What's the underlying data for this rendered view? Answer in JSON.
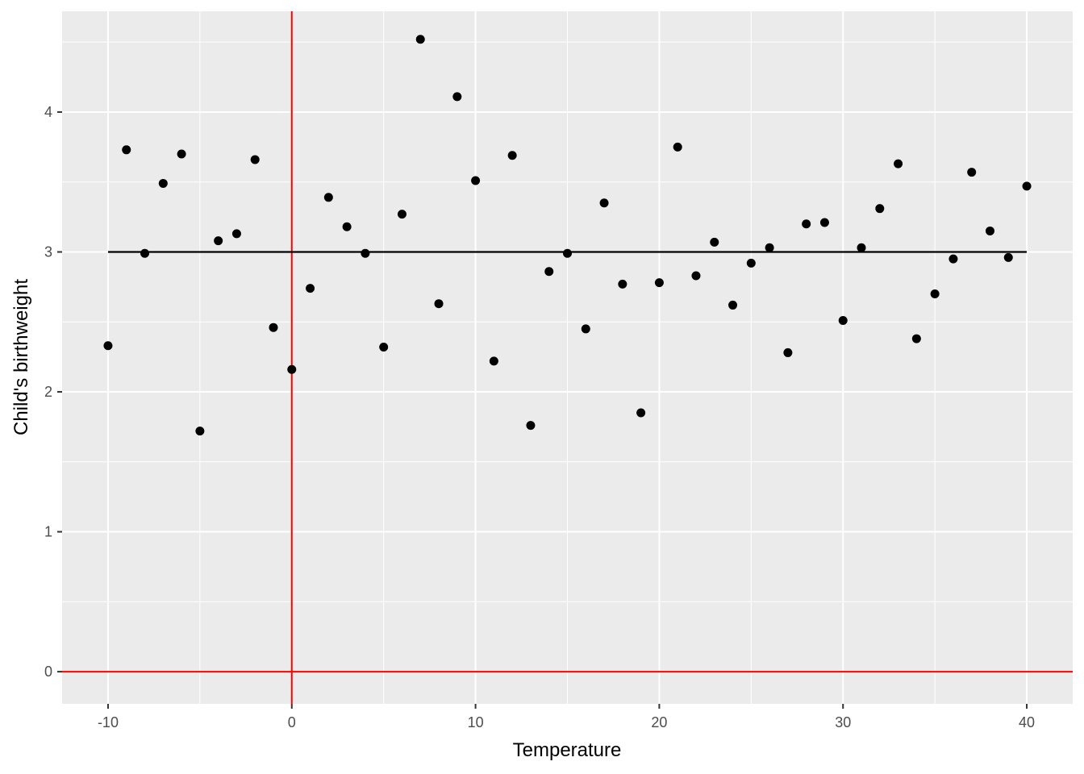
{
  "chart_data": {
    "type": "scatter",
    "title": "",
    "xlabel": "Temperature",
    "ylabel": "Child's birthweight",
    "xlim": [
      -12.5,
      42.5
    ],
    "ylim": [
      -0.23,
      4.72
    ],
    "x_ticks": [
      -10,
      0,
      10,
      20,
      30,
      40
    ],
    "x_tick_labels": [
      "-10",
      "0",
      "10",
      "20",
      "30",
      "40"
    ],
    "y_ticks": [
      0,
      1,
      2,
      3,
      4
    ],
    "y_tick_labels": [
      "0",
      "1",
      "2",
      "3",
      "4"
    ],
    "grid": true,
    "legend": "none",
    "colors": {
      "panel_background": "#ebebeb",
      "grid": "#ffffff",
      "points": "#000000",
      "reference_lines": "#ff0000",
      "fit_line": "#000000"
    },
    "series": [
      {
        "x": [
          -10,
          -9,
          -8,
          -7,
          -6,
          -5,
          -4,
          -3,
          -2,
          -1,
          0,
          1,
          2,
          3,
          4,
          5,
          6,
          7,
          8,
          9,
          10,
          11,
          12,
          13,
          14,
          15,
          16,
          17,
          18,
          19,
          20,
          21,
          22,
          23,
          24,
          25,
          26,
          27,
          28,
          29,
          30,
          31,
          32,
          33,
          34,
          35,
          36,
          37,
          38,
          39,
          40
        ],
        "y": [
          2.33,
          3.73,
          2.99,
          3.49,
          3.7,
          1.72,
          3.08,
          3.13,
          3.66,
          2.46,
          2.16,
          2.74,
          3.39,
          3.18,
          2.99,
          2.32,
          3.27,
          4.52,
          2.63,
          4.11,
          3.51,
          2.22,
          3.69,
          1.76,
          2.86,
          2.99,
          2.45,
          3.35,
          2.77,
          1.85,
          2.78,
          3.75,
          2.83,
          3.07,
          2.62,
          2.92,
          3.03,
          2.28,
          3.2,
          3.21,
          2.51,
          3.03,
          3.31,
          3.63,
          2.38,
          2.7,
          2.95,
          3.57,
          3.15,
          2.96,
          3.47
        ]
      }
    ],
    "reference_lines": {
      "vertical_x": 0,
      "horizontal_y": 0
    },
    "fit_line": {
      "x_start": -10,
      "x_end": 40,
      "y": 3
    }
  }
}
